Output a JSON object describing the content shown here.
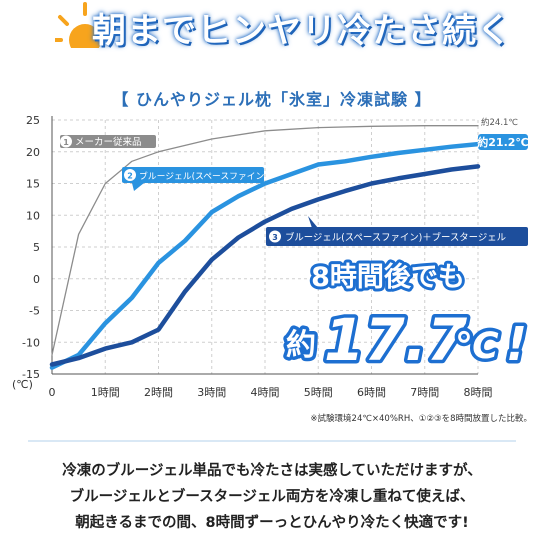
{
  "headline": "朝までヒンヤリ冷たさ続く",
  "chart_title": "【 ひんやりジェル枕「氷室」冷凍試験 】",
  "chart_data": {
    "type": "line",
    "yticks": [
      25,
      20,
      15,
      10,
      5,
      0,
      -5,
      -10,
      -15
    ],
    "ylim": [
      -15,
      25
    ],
    "y_unit": "(℃)",
    "xticks": [
      "0",
      "1時間",
      "2時間",
      "3時間",
      "4時間",
      "5時間",
      "6時間",
      "7時間",
      "8時間"
    ],
    "xlim": [
      0,
      8
    ],
    "grid": true,
    "series": [
      {
        "name": "メーカー従来品",
        "badge": "1",
        "color": "#8c8c8c",
        "x": [
          0,
          0.5,
          1,
          1.5,
          2,
          3,
          4,
          5,
          6,
          7,
          8
        ],
        "y": [
          -12,
          7,
          15,
          18.5,
          20,
          22,
          23.3,
          23.8,
          24,
          24.1,
          24.1
        ],
        "end_label": "約24.1℃"
      },
      {
        "name": "ブルージェル(スペースファイン)",
        "badge": "2",
        "color": "#2a93e0",
        "x": [
          0,
          0.5,
          1,
          1.5,
          2,
          2.5,
          3,
          3.5,
          4,
          4.5,
          5,
          5.5,
          6,
          6.5,
          7,
          7.5,
          8
        ],
        "y": [
          -14,
          -12,
          -7,
          -3,
          2.5,
          6,
          10.5,
          13,
          15,
          16.5,
          18,
          18.5,
          19.2,
          19.8,
          20.3,
          20.8,
          21.2
        ],
        "end_label": "約21.2℃"
      },
      {
        "name": "ブルージェル(スペースファイン)＋ブースタージェル",
        "badge": "3",
        "color": "#1d4e9c",
        "x": [
          0,
          0.5,
          1,
          1.5,
          2,
          2.5,
          3,
          3.5,
          4,
          4.5,
          5,
          5.5,
          6,
          6.5,
          7,
          7.5,
          8
        ],
        "y": [
          -13.5,
          -12.5,
          -11,
          -10,
          -8,
          -2,
          3,
          6.5,
          9,
          11,
          12.5,
          13.8,
          15,
          15.8,
          16.5,
          17.2,
          17.7
        ]
      }
    ],
    "callout": {
      "line1": "8時間後でも",
      "prefix": "約",
      "value": "17.7",
      "unit": "℃",
      "suffix": "!"
    }
  },
  "footnote": "※試験環境24℃×40%RH、①②③を8時間放置した比較。",
  "bottom_text": [
    "冷凍のブルージェル単品でも冷たさは実感していただけますが、",
    "ブルージェルとブースタージェル両方を冷凍し重ねて使えば、",
    "朝起きるまでの間、8時間ずーっとひんやり冷たく快適です!"
  ],
  "colors": {
    "accent": "#2a72c9",
    "highlight": "#1da1f2",
    "orange": "#f5a623"
  }
}
